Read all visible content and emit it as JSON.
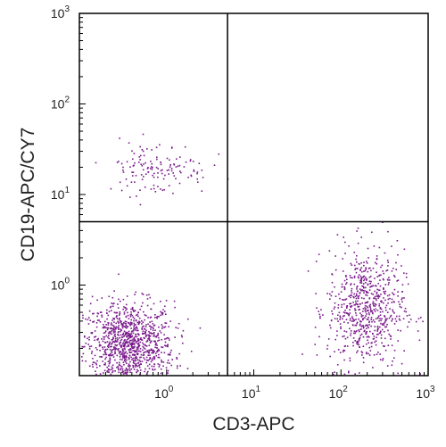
{
  "chart_data": {
    "type": "scatter",
    "title": "",
    "xlabel": "CD3-APC",
    "ylabel": "CD19-APC/CY7",
    "xscale": "log",
    "yscale": "log",
    "xlim": [
      0.1,
      1000
    ],
    "ylim": [
      0.1,
      1000
    ],
    "x_ticks": [
      {
        "base": "10",
        "exp": "0",
        "value": 1
      },
      {
        "base": "10",
        "exp": "1",
        "value": 10
      },
      {
        "base": "10",
        "exp": "2",
        "value": 100
      },
      {
        "base": "10",
        "exp": "3",
        "value": 1000
      }
    ],
    "y_ticks": [
      {
        "base": "10",
        "exp": "0",
        "value": 1
      },
      {
        "base": "10",
        "exp": "1",
        "value": 10
      },
      {
        "base": "10",
        "exp": "2",
        "value": 100
      },
      {
        "base": "10",
        "exp": "3",
        "value": 1000
      }
    ],
    "quadrant_gates": {
      "x": 5,
      "y": 5
    },
    "point_color": "#7a1a8c",
    "series": [
      {
        "count": 1100,
        "x_median": 0.36,
        "x_log_spread": 0.26,
        "y_median": 0.22,
        "y_log_spread": 0.24
      },
      {
        "count": 700,
        "x_median": 190,
        "x_log_spread": 0.22,
        "y_median": 0.55,
        "y_log_spread": 0.33
      },
      {
        "count": 140,
        "x_median": 0.75,
        "x_log_spread": 0.3,
        "y_median": 20,
        "y_log_spread": 0.15
      }
    ],
    "grid": false
  }
}
